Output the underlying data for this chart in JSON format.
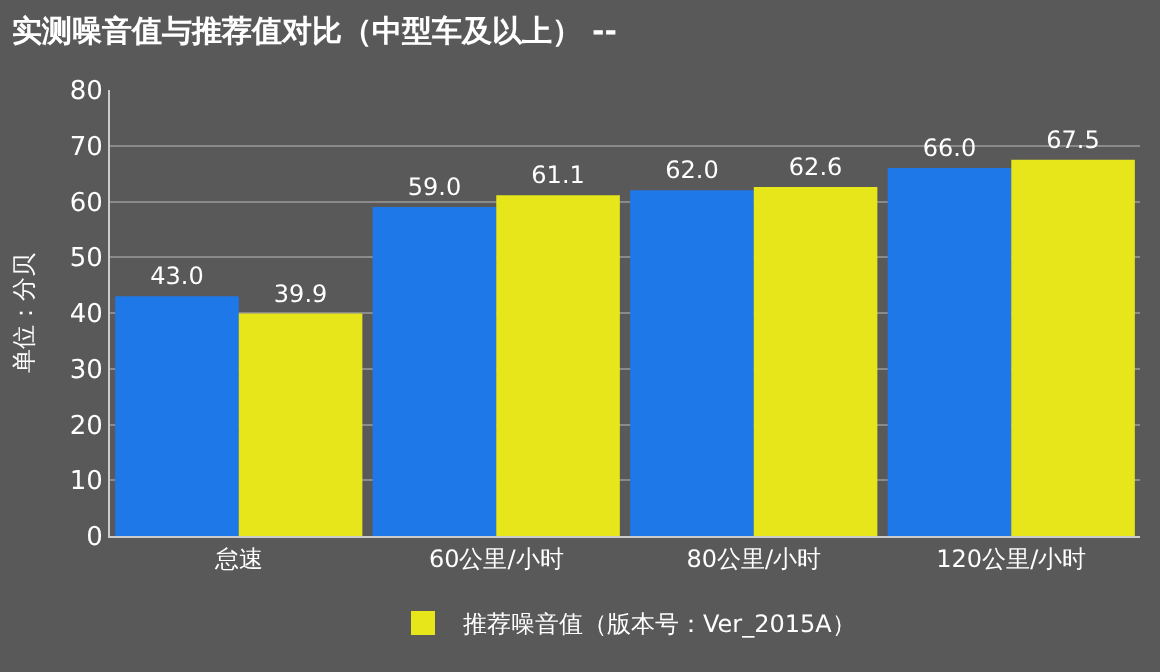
{
  "chart_data": {
    "type": "bar",
    "title": "实测噪音值与推荐值对比（中型车及以上） --",
    "ylabel": "单位：分贝",
    "categories": [
      "怠速",
      "60公里/小时",
      "80公里/小时",
      "120公里/小时"
    ],
    "series": [
      {
        "color": "#1f78e8",
        "values": [
          43.0,
          59.0,
          62.0,
          66.0
        ]
      },
      {
        "name": "推荐噪音值（版本号：Ver_2015A）",
        "color": "#e6e61a",
        "values": [
          39.9,
          61.1,
          62.6,
          67.5
        ]
      }
    ],
    "value_labels": [
      [
        "43.0",
        "59.0",
        "62.0",
        "66.0"
      ],
      [
        "39.9",
        "61.1",
        "62.6",
        "67.5"
      ]
    ],
    "ylim": [
      0,
      80
    ],
    "yticks": [
      0,
      10,
      20,
      30,
      40,
      50,
      60,
      70,
      80
    ],
    "grid": "y",
    "legend": "bottom"
  }
}
